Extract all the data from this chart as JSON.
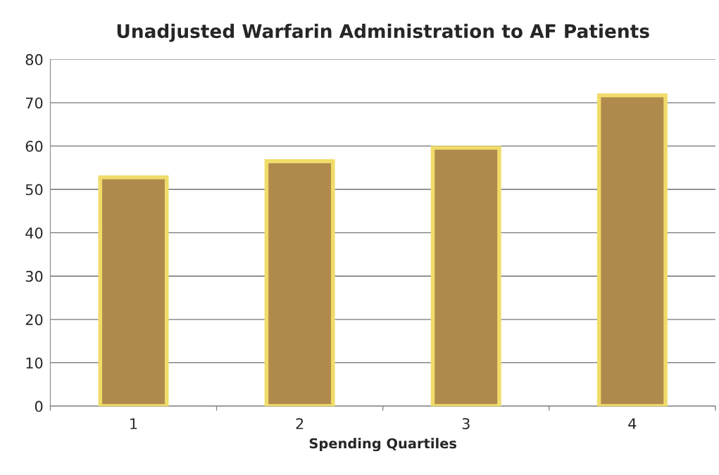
{
  "chart_data": {
    "type": "bar",
    "title": "Unadjusted Warfarin Administration to AF Patients",
    "xlabel": "Spending Quartiles",
    "categories": [
      "1",
      "2",
      "3",
      "4"
    ],
    "values": [
      52.8,
      56.5,
      59.6,
      71.7
    ],
    "color": "#b08a4c",
    "ylim": [
      0,
      80
    ],
    "yticks": [
      0,
      10,
      20,
      30,
      40,
      50,
      60,
      70,
      80
    ],
    "grid": "y"
  }
}
